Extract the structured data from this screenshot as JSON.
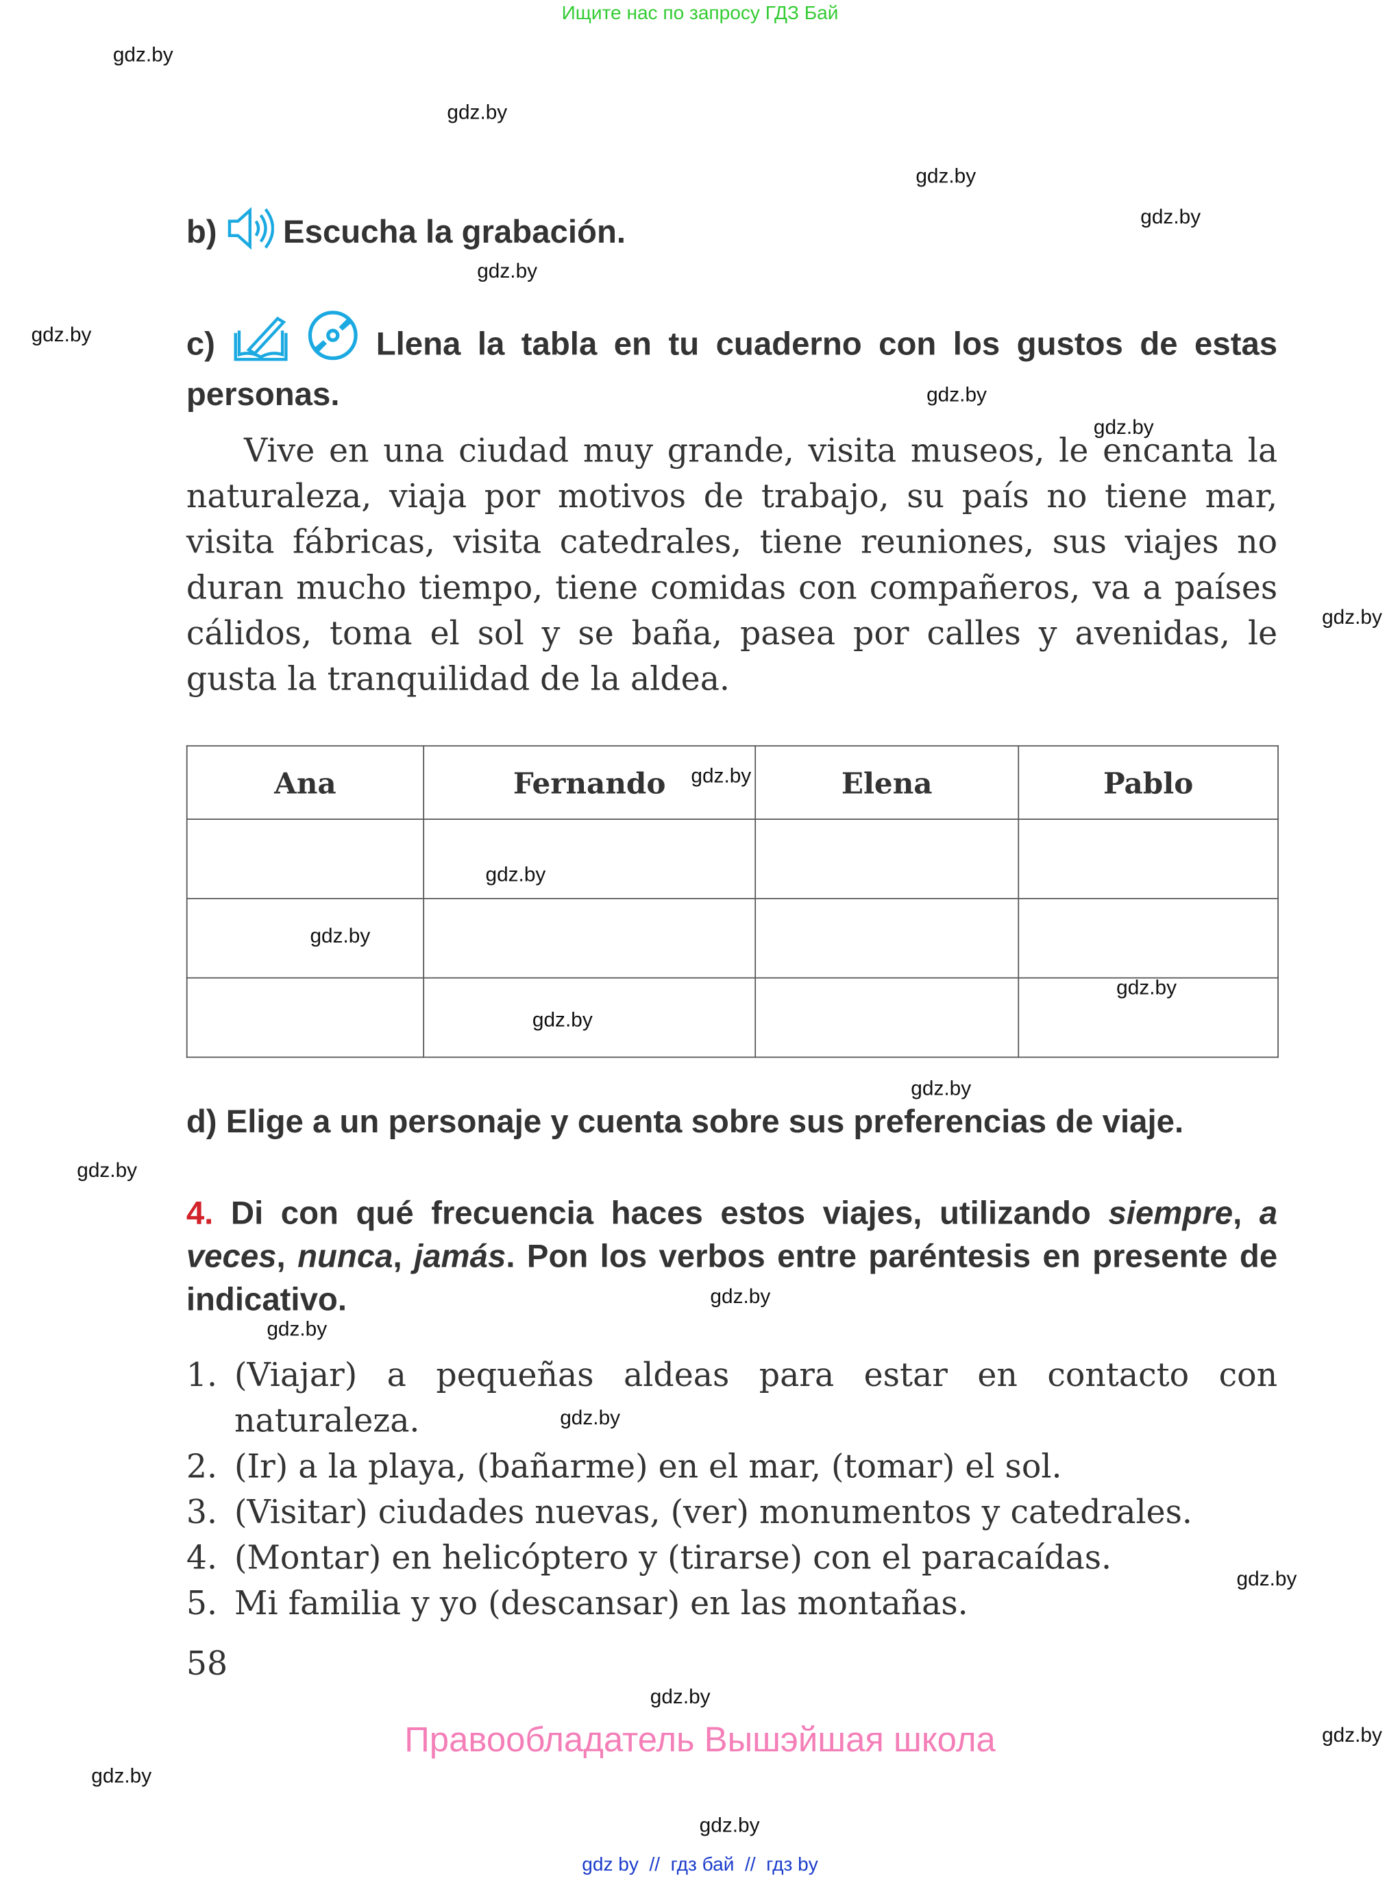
{
  "top_banner": "Ищите нас по запросу ГДЗ Бай",
  "watermark": "gdz.by",
  "section_b": {
    "label": "b)",
    "text": "Escucha la grabación.",
    "icon": "speaker-icon"
  },
  "section_c": {
    "label": "c)",
    "text": "Llena la tabla en tu cuaderno con los gustos de estas personas.",
    "icons": [
      "book-pen-icon",
      "cd-icon"
    ]
  },
  "paragraph": "Vive en una ciudad muy grande, visita museos, le encanta la naturaleza, viaja por motivos de trabajo, su país no tiene mar, visita fábricas, visita catedrales, tiene reuniones, sus viajes no duran mucho tiempo, tiene comidas con compañeros, va a países cálidos, toma el sol y se baña, pasea por calles y avenidas, le gusta la tranquilidad de la aldea.",
  "table": {
    "headers": [
      "Ana",
      "Fernando",
      "Elena",
      "Pablo"
    ],
    "rows": [
      [
        "",
        "",
        "",
        ""
      ],
      [
        "",
        "",
        "",
        ""
      ],
      [
        "",
        "",
        "",
        ""
      ]
    ]
  },
  "section_d": {
    "label": "d)",
    "text": "Elige a un personaje y cuenta sobre sus preferencias de viaje."
  },
  "exercise4": {
    "number": "4.",
    "t1": "Di con qué frecuencia haces estos viajes, utilizando ",
    "w1": "siempre",
    "c1": ", ",
    "w2": "a veces",
    "c2": ", ",
    "w3": "nunca",
    "c3": ", ",
    "w4": "jamás",
    "t2": ". Pon los verbos entre paréntesis en presente de indicativo.",
    "number_color": "#d2232a",
    "items": [
      {
        "n": "1.",
        "text": "(Viajar) a pequeñas aldeas para estar en contacto con naturaleza."
      },
      {
        "n": "2.",
        "text": "(Ir) a la playa, (bañarme) en el mar, (tomar) el sol."
      },
      {
        "n": "3.",
        "text": "(Visitar) ciudades nuevas, (ver) monumentos y catedrales."
      },
      {
        "n": "4.",
        "text": "(Montar) en helicóptero y (tirarse) con el paracaídas."
      },
      {
        "n": "5.",
        "text": "Mi familia y yo (descansar) en las montañas."
      }
    ]
  },
  "page_number": "58",
  "copyright": "Правообладатель Вышэйшая школа",
  "footer_links": [
    "gdz by",
    "гдз бай",
    "гдз by"
  ],
  "footer_sep": "//",
  "colors": {
    "banner": "#33cc33",
    "icon": "#1ba9e1",
    "copyright": "#f47fb8",
    "footer": "#1a3ccc"
  }
}
